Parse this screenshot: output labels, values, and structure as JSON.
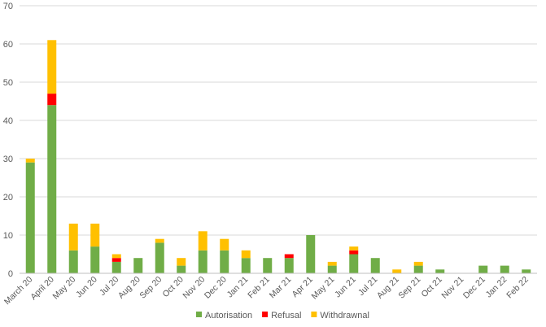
{
  "chart_data": {
    "type": "bar",
    "stacked": true,
    "categories": [
      "March 20",
      "April 20",
      "May 20",
      "Jun 20",
      "Jul 20",
      "Aug 20",
      "Sep 20",
      "Oct 20",
      "Nov 20",
      "Dec 20",
      "Jan 21",
      "Feb 21",
      "Mar 21",
      "Apr 21",
      "May 21",
      "Jun 21",
      "Jul 21",
      "Aug 21",
      "Sep 21",
      "Oct 21",
      "Nov 21",
      "Dec 21",
      "Jan 22",
      "Feb 22"
    ],
    "series": [
      {
        "name": "Autorisation",
        "color": "#70ad47",
        "values": [
          29,
          44,
          6,
          7,
          3,
          4,
          8,
          2,
          6,
          6,
          4,
          4,
          4,
          10,
          2,
          5,
          4,
          0,
          2,
          1,
          0,
          2,
          2,
          1
        ]
      },
      {
        "name": "Refusal",
        "color": "#ff0000",
        "values": [
          0,
          3,
          0,
          0,
          1,
          0,
          0,
          0,
          0,
          0,
          0,
          0,
          1,
          0,
          0,
          1,
          0,
          0,
          0,
          0,
          0,
          0,
          0,
          0
        ]
      },
      {
        "name": "Withdrawnal",
        "color": "#ffc000",
        "values": [
          1,
          14,
          7,
          6,
          1,
          0,
          1,
          2,
          5,
          3,
          2,
          0,
          0,
          0,
          1,
          1,
          0,
          1,
          1,
          0,
          0,
          0,
          0,
          0
        ]
      }
    ],
    "ylim": [
      0,
      70
    ],
    "yticks": [
      0,
      10,
      20,
      30,
      40,
      50,
      60,
      70
    ],
    "grid": true,
    "legend": "bottom"
  }
}
